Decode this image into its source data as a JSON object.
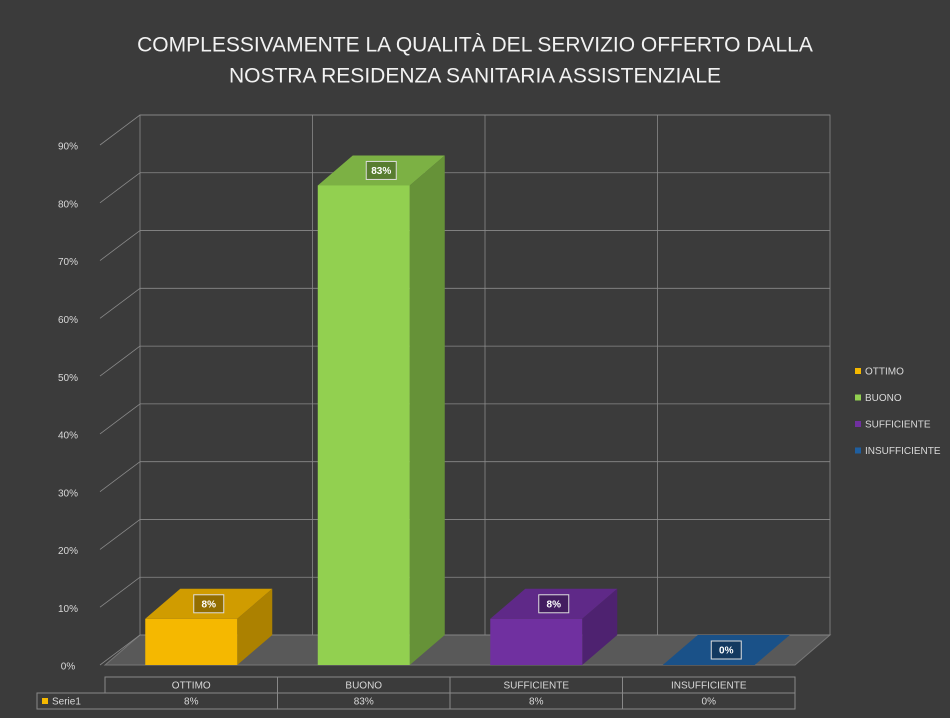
{
  "chart_data": {
    "type": "bar3d",
    "title": [
      "COMPLESSIVAMENTE LA QUALITÀ DEL SERVIZIO OFFERTO DALLA",
      "NOSTRA  RESIDENZA SANITARIA ASSISTENZIALE"
    ],
    "categories": [
      "OTTIMO",
      "BUONO",
      "SUFFICIENTE",
      "INSUFFICIENTE"
    ],
    "series": [
      {
        "name": "Serie1",
        "color": "#f5b800",
        "values": [
          8,
          83,
          8,
          0
        ],
        "value_labels": [
          "8%",
          "83%",
          "8%",
          "0%"
        ]
      }
    ],
    "colors": [
      "#f5b800",
      "#92d050",
      "#7030a0",
      "#1f5fa0"
    ],
    "ylim": [
      0,
      90
    ],
    "yticks": [
      {
        "value": 0,
        "label": "0%"
      },
      {
        "value": 10,
        "label": "10%"
      },
      {
        "value": 20,
        "label": "20%"
      },
      {
        "value": 30,
        "label": "30%"
      },
      {
        "value": 40,
        "label": "40%"
      },
      {
        "value": 50,
        "label": "50%"
      },
      {
        "value": 60,
        "label": "60%"
      },
      {
        "value": 70,
        "label": "70%"
      },
      {
        "value": 80,
        "label": "80%"
      },
      {
        "value": 90,
        "label": "90%"
      }
    ],
    "grid": true,
    "legend": "right",
    "data_table": true
  }
}
